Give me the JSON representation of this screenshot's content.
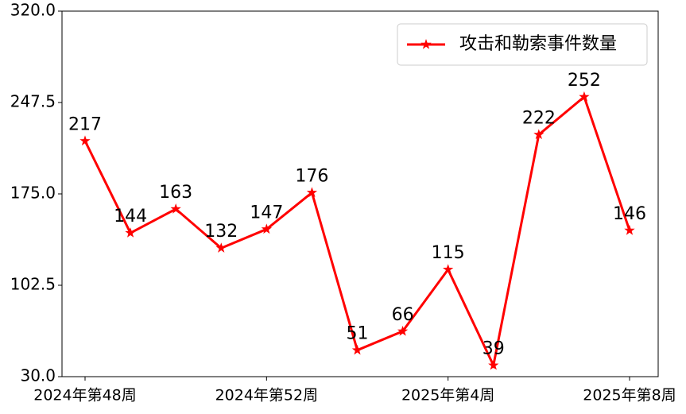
{
  "chart_data": {
    "type": "line",
    "categories": [
      "2024年第48周",
      null,
      null,
      null,
      "2024年第52周",
      null,
      null,
      null,
      "2025年第4周",
      null,
      null,
      null,
      "2025年第8周"
    ],
    "series": [
      {
        "name": "攻击和勒索事件数量",
        "color": "#ff0000",
        "values": [
          217,
          144,
          163,
          132,
          147,
          176,
          51,
          66,
          115,
          39,
          222,
          252,
          146
        ]
      }
    ],
    "ylim": [
      30,
      320
    ],
    "yticks": [
      {
        "value": 30,
        "label": "30.0"
      },
      {
        "value": 102.5,
        "label": "102.5"
      },
      {
        "value": 175,
        "label": "175.0"
      },
      {
        "value": 247.5,
        "label": "247.5"
      },
      {
        "value": 320,
        "label": "320.0"
      }
    ],
    "legend": "upper right"
  }
}
